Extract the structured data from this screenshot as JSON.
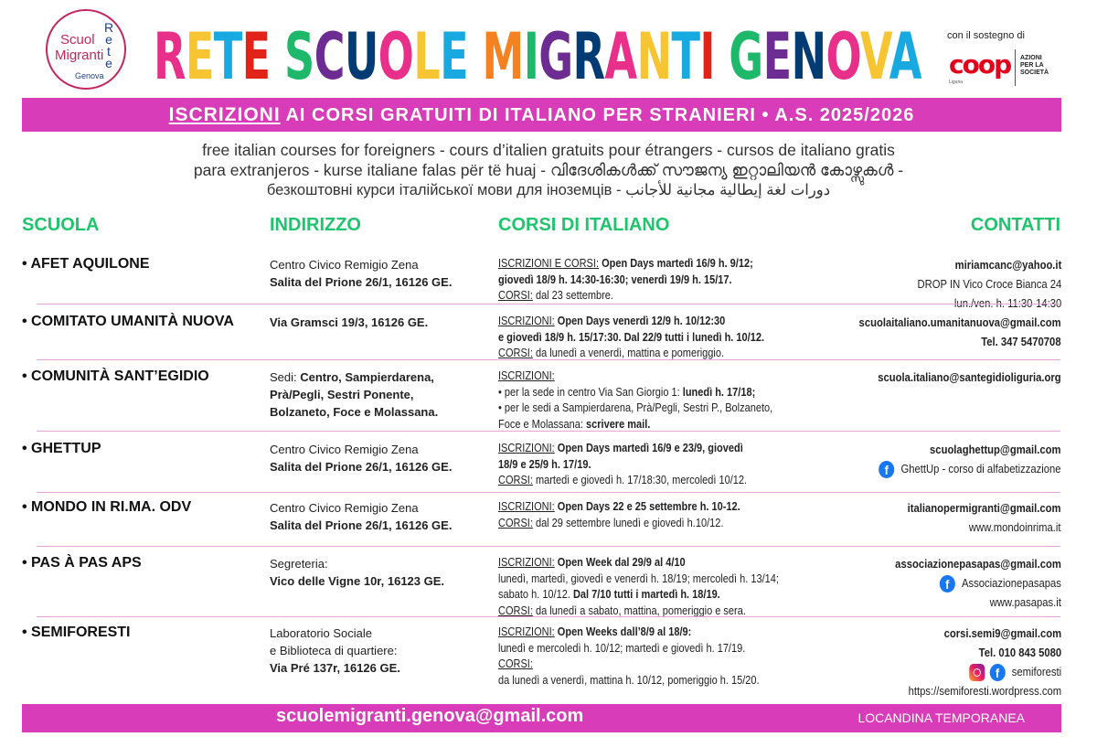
{
  "logo": {
    "line1": "Scuol",
    "line2": "Migranti",
    "rete": "Rete",
    "city": "Genova"
  },
  "title": {
    "text": "RETE SCUOLE MIGRANTI GENOVA",
    "colors": [
      "#e8308a",
      "#f7c531",
      "#18a9e1",
      "#e2231a",
      "#f58220",
      "#1db86a",
      "#6d2c91",
      "#003b73"
    ]
  },
  "sponsor": {
    "label": "con il sostegno di",
    "brand": "coop",
    "region": "Liguria",
    "tagline": "AZIONI PER LA SOCIETÀ"
  },
  "banner": {
    "highlight": "ISCRIZIONI",
    "rest": " AI CORSI GRATUITI DI ITALIANO PER STRANIERI • A.S. 2025/2026",
    "color": "#d83cb8"
  },
  "translations": [
    "free italian courses for foreigners - cours d’italien gratuits pour étrangers - cursos de italiano gratis",
    "para extranjeros - kurse italiane falas për të huaj - വിദേശികൾക്ക് സൗജന്യ ഇറ്റാലിയൻ കോഴ്സുകൾ -",
    "безкоштовні курси італійської мови для іноземців - دورات لغة إيطالية مجانية للأجانب"
  ],
  "headers": {
    "school": "SCUOLA",
    "address": "INDIRIZZO",
    "courses": "CORSI DI ITALIANO",
    "contacts": "CONTATTI",
    "color": "#1ec56d"
  },
  "rows": [
    {
      "school": "• AFET AQUILONE",
      "address": [
        [
          [
            "t",
            "Centro Civico Remigio Zena"
          ]
        ],
        [
          [
            "b",
            "Salita del Prione 26/1, 16126 GE."
          ]
        ]
      ],
      "courses": [
        [
          [
            "u",
            "ISCRIZIONI E CORSI:"
          ],
          [
            "b",
            " Open Days martedì 16/9 h. 9/12;"
          ]
        ],
        [
          [
            "b",
            "giovedì 18/9 h. 14:30-16:30; venerdì 19/9 h. 15/17."
          ]
        ],
        [
          [
            "u",
            "CORSI:"
          ],
          [
            "t",
            " dal 23 settembre."
          ]
        ]
      ],
      "contacts": [
        [
          [
            "b",
            "miriamcanc@yahoo.it"
          ]
        ],
        [
          [
            "t",
            "DROP IN Vico Croce Bianca 24"
          ]
        ],
        [
          [
            "t",
            "lun./ven. h. 11:30-14:30"
          ]
        ]
      ]
    },
    {
      "school": "• COMITATO UMANITÀ NUOVA",
      "address": [
        [
          [
            "b",
            "Via Gramsci 19/3, 16126 GE."
          ]
        ]
      ],
      "courses": [
        [
          [
            "u",
            "ISCRIZIONI:"
          ],
          [
            "b",
            " Open Days venerdì 12/9 h. 10/12:30"
          ]
        ],
        [
          [
            "b",
            "e giovedì 18/9 h. 15/17:30. Dal 22/9 tutti i lunedì h. 10/12."
          ]
        ],
        [
          [
            "u",
            "CORSI:"
          ],
          [
            "t",
            " da lunedì a venerdì, mattina e pomeriggio."
          ]
        ]
      ],
      "contacts": [
        [
          [
            "b",
            "scuolaitaliano.umanitanuova@gmail.com"
          ]
        ],
        [
          [
            "b",
            "Tel. 347 5470708"
          ]
        ]
      ]
    },
    {
      "school": "• COMUNITÀ SANT’EGIDIO",
      "address": [
        [
          [
            "t",
            "Sedi: "
          ],
          [
            "b",
            "Centro, Sampierdarena,"
          ]
        ],
        [
          [
            "b",
            "Prà/Pegli, Sestri Ponente,"
          ]
        ],
        [
          [
            "b",
            "Bolzaneto, Foce e Molassana."
          ]
        ]
      ],
      "courses": [
        [
          [
            "u",
            "ISCRIZIONI:"
          ]
        ],
        [
          [
            "t",
            "• per la sede in centro Via San Giorgio 1: "
          ],
          [
            "b",
            "lunedì h. 17/18;"
          ]
        ],
        [
          [
            "t",
            "• per le sedi a Sampierdarena, Prà/Pegli, Sestri P., Bolzaneto,"
          ]
        ],
        [
          [
            "t",
            "Foce e Molassana: "
          ],
          [
            "b",
            "scrivere mail."
          ]
        ]
      ],
      "contacts": [
        [
          [
            "b",
            "scuola.italiano@santegidioliguria.org"
          ]
        ]
      ]
    },
    {
      "school": "• GHETTUP",
      "address": [
        [
          [
            "t",
            "Centro Civico Remigio Zena"
          ]
        ],
        [
          [
            "b",
            "Salita del Prione 26/1, 16126 GE."
          ]
        ]
      ],
      "courses": [
        [
          [
            "u",
            "ISCRIZIONI:"
          ],
          [
            "b",
            " Open Days martedì 16/9 e 23/9, giovedì"
          ]
        ],
        [
          [
            "b",
            "18/9 e 25/9 h. 17/19."
          ]
        ],
        [
          [
            "u",
            "CORSI:"
          ],
          [
            "t",
            " martedì e giovedì h. 17/18:30, mercoledì 10/12."
          ]
        ]
      ],
      "contacts": [
        [
          [
            "b",
            "scuolaghettup@gmail.com"
          ]
        ],
        [
          [
            "fb",
            "facebook-icon"
          ],
          [
            "t",
            "GhettUp - corso di alfabetizzazione"
          ]
        ]
      ]
    },
    {
      "school": "• MONDO IN RI.MA. ODV",
      "address": [
        [
          [
            "t",
            "Centro Civico Remigio Zena"
          ]
        ],
        [
          [
            "b",
            "Salita del Prione 26/1, 16126 GE."
          ]
        ]
      ],
      "courses": [
        [
          [
            "u",
            "ISCRIZIONI:"
          ],
          [
            "b",
            " Open Days 22 e 25 settembre h. 10-12."
          ]
        ],
        [
          [
            "u",
            "CORSI:"
          ],
          [
            "t",
            " dal 29 settembre lunedì e giovedì h.10/12."
          ]
        ]
      ],
      "contacts": [
        [
          [
            "b",
            "italianopermigranti@gmail.com"
          ]
        ],
        [
          [
            "t",
            "www.mondoinrima.it"
          ]
        ]
      ]
    },
    {
      "school": "• PAS À PAS APS",
      "address": [
        [
          [
            "t",
            "Segreteria:"
          ]
        ],
        [
          [
            "b",
            "Vico delle Vigne 10r, 16123 GE."
          ]
        ]
      ],
      "courses": [
        [
          [
            "u",
            "ISCRIZIONI:"
          ],
          [
            "b",
            " Open Week dal 29/9 al 4/10"
          ]
        ],
        [
          [
            "t",
            "lunedì, martedì, giovedì e venerdì h. 18/19; mercoledì h. 13/14;"
          ]
        ],
        [
          [
            "t",
            "sabato h. 10/12. "
          ],
          [
            "b",
            "Dal 7/10 tutti i martedì h. 18/19."
          ]
        ],
        [
          [
            "u",
            "CORSI:"
          ],
          [
            "t",
            " da lunedì a sabato, mattina, pomeriggio e sera."
          ]
        ]
      ],
      "contacts": [
        [
          [
            "b",
            "associazionepasapas@gmail.com"
          ]
        ],
        [
          [
            "fb",
            "facebook-icon"
          ],
          [
            "t",
            "Associazionepasapas"
          ]
        ],
        [
          [
            "t",
            "www.pasapas.it"
          ]
        ]
      ]
    },
    {
      "school": "• SEMIFORESTI",
      "address": [
        [
          [
            "t",
            "Laboratorio Sociale"
          ]
        ],
        [
          [
            "t",
            "e Biblioteca di quartiere:"
          ]
        ],
        [
          [
            "b",
            "Via Pré 137r, 16126 GE."
          ]
        ]
      ],
      "courses": [
        [
          [
            "u",
            "ISCRIZIONI:"
          ],
          [
            "b",
            " Open Weeks dall’8/9 al 18/9:"
          ]
        ],
        [
          [
            "t",
            "lunedì e mercoledì h. 10/12; martedì e giovedì h. 17/19."
          ]
        ],
        [
          [
            "u",
            "CORSI:"
          ]
        ],
        [
          [
            "t",
            "da lunedì a venerdì, mattina h. 10/12, pomeriggio h. 15/20."
          ]
        ]
      ],
      "contacts": [
        [
          [
            "b",
            "corsi.semi9@gmail.com"
          ]
        ],
        [
          [
            "b",
            "Tel. 010 843 5080"
          ]
        ],
        [
          [
            "ig",
            "instagram-icon"
          ],
          [
            "fb",
            "facebook-icon"
          ],
          [
            "t",
            "semiforesti"
          ]
        ],
        [
          [
            "t",
            "https://semiforesti.wordpress.com"
          ]
        ]
      ]
    }
  ],
  "footer": {
    "email": "scuolemigranti.genova@gmail.com",
    "note": "LOCANDINA TEMPORANEA"
  }
}
